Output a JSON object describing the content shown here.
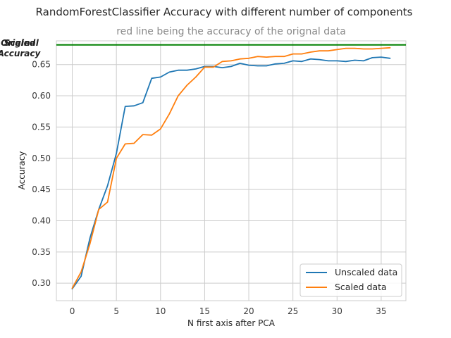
{
  "chart_data": {
    "type": "line",
    "title": "RandomForestClassifier Accuracy with different number of components",
    "subtitle": "red line being the accuracy of the orignal data",
    "xlabel": "N first axis after PCA",
    "ylabel": "Accuracy",
    "xlim": [
      -1.8,
      37.8
    ],
    "ylim": [
      0.272,
      0.688
    ],
    "xticks": [
      0,
      5,
      10,
      15,
      20,
      25,
      30,
      35
    ],
    "yticks": [
      0.3,
      0.35,
      0.4,
      0.45,
      0.5,
      0.55,
      0.6,
      0.65
    ],
    "grid": true,
    "legend_position": "lower-right",
    "reference_line": {
      "label_overlap": [
        "Original",
        "Scaled"
      ],
      "label_line2": "Accuracy",
      "value": 0.6815,
      "color": "#008000"
    },
    "series": [
      {
        "name": "Unscaled data",
        "color": "#1f77b4",
        "x": [
          0,
          1,
          2,
          3,
          4,
          5,
          6,
          7,
          8,
          9,
          10,
          11,
          12,
          13,
          14,
          15,
          16,
          17,
          18,
          19,
          20,
          21,
          22,
          23,
          24,
          25,
          26,
          27,
          28,
          29,
          30,
          31,
          32,
          33,
          34,
          35,
          36
        ],
        "values": [
          0.291,
          0.311,
          0.372,
          0.418,
          0.456,
          0.508,
          0.583,
          0.584,
          0.589,
          0.628,
          0.63,
          0.638,
          0.641,
          0.641,
          0.643,
          0.647,
          0.647,
          0.645,
          0.647,
          0.652,
          0.649,
          0.648,
          0.648,
          0.651,
          0.652,
          0.656,
          0.655,
          0.659,
          0.658,
          0.656,
          0.656,
          0.655,
          0.657,
          0.656,
          0.661,
          0.662,
          0.66
        ]
      },
      {
        "name": "Scaled data",
        "color": "#ff7f0e",
        "x": [
          0,
          1,
          2,
          3,
          4,
          5,
          6,
          7,
          8,
          9,
          10,
          11,
          12,
          13,
          14,
          15,
          16,
          17,
          18,
          19,
          20,
          21,
          22,
          23,
          24,
          25,
          26,
          27,
          28,
          29,
          30,
          31,
          32,
          33,
          34,
          35,
          36
        ],
        "values": [
          0.292,
          0.318,
          0.363,
          0.418,
          0.43,
          0.5,
          0.523,
          0.524,
          0.538,
          0.537,
          0.547,
          0.571,
          0.6,
          0.617,
          0.63,
          0.646,
          0.646,
          0.655,
          0.656,
          0.659,
          0.66,
          0.663,
          0.662,
          0.663,
          0.663,
          0.667,
          0.667,
          0.67,
          0.672,
          0.672,
          0.674,
          0.676,
          0.676,
          0.675,
          0.675,
          0.676,
          0.677
        ]
      }
    ]
  }
}
